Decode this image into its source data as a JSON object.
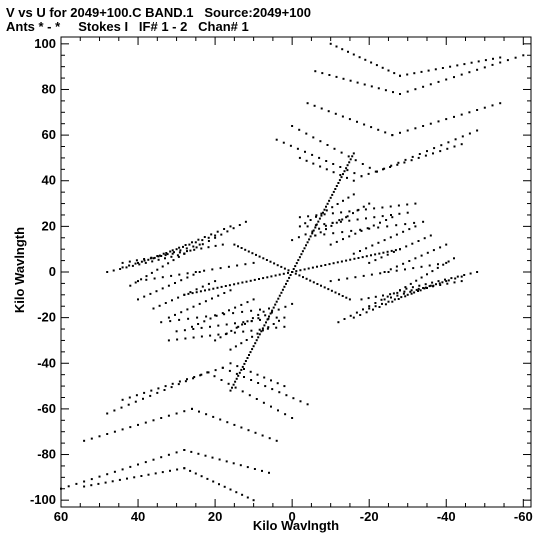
{
  "header": {
    "title": "V vs U for 2049+100.C BAND.1   Source:2049+100",
    "subtitle": "Ants * - *     Stokes I   IF# 1 - 2   Chan# 1"
  },
  "chart_data": {
    "type": "scatter",
    "title": "V vs U for 2049+100.C BAND.1   Source:2049+100",
    "subtitle": "Ants * - *     Stokes I   IF# 1 - 2   Chan# 1",
    "xlabel": "Kilo Wavlngth",
    "ylabel": "Kilo Wavlngth",
    "xlim": [
      60,
      -62
    ],
    "ylim": [
      -103,
      103
    ],
    "x_ticks": [
      60,
      40,
      20,
      0,
      -20,
      -40,
      -60
    ],
    "y_ticks": [
      100,
      80,
      60,
      40,
      20,
      0,
      -20,
      -40,
      -60,
      -80,
      -100
    ],
    "x_tick_labels": [
      "60",
      "40",
      "20",
      "0",
      "-20",
      "-40",
      "-60"
    ],
    "y_tick_labels": [
      "100",
      "80",
      "60",
      "40",
      "20",
      "0",
      "-20",
      "-40",
      "-60",
      "-80",
      "-100"
    ],
    "grid": false,
    "marker_color": "#000000",
    "description_of_data": "uv-coverage tracks, symmetric about origin (u,v) <-> (-u,-v)",
    "tracks": [
      {
        "from": [
          0,
          0
        ],
        "to": [
          -16,
          52
        ],
        "n": 40
      },
      {
        "from": [
          0,
          0
        ],
        "to": [
          16,
          -52
        ],
        "n": 40
      },
      {
        "from": [
          0,
          0
        ],
        "to": [
          28,
          -10
        ],
        "n": 26
      },
      {
        "from": [
          0,
          0
        ],
        "to": [
          -28,
          10
        ],
        "n": 26
      },
      {
        "from": [
          0,
          0
        ],
        "to": [
          -15,
          -12
        ],
        "n": 16
      },
      {
        "from": [
          0,
          0
        ],
        "to": [
          15,
          12
        ],
        "n": 16
      },
      {
        "from": [
          -10,
          100
        ],
        "to": [
          -28,
          86
        ],
        "n": 12
      },
      {
        "from": [
          -28,
          86
        ],
        "to": [
          -54,
          94
        ],
        "n": 14
      },
      {
        "from": [
          -6,
          88
        ],
        "to": [
          -28,
          78
        ],
        "n": 12
      },
      {
        "from": [
          -28,
          78
        ],
        "to": [
          -60,
          95
        ],
        "n": 16
      },
      {
        "from": [
          -4,
          74
        ],
        "to": [
          -26,
          60
        ],
        "n": 12
      },
      {
        "from": [
          -26,
          60
        ],
        "to": [
          -54,
          74
        ],
        "n": 14
      },
      {
        "from": [
          0,
          64
        ],
        "to": [
          -22,
          44
        ],
        "n": 12
      },
      {
        "from": [
          -22,
          44
        ],
        "to": [
          -48,
          62
        ],
        "n": 14
      },
      {
        "from": [
          4,
          58
        ],
        "to": [
          -18,
          42
        ],
        "n": 12
      },
      {
        "from": [
          -18,
          42
        ],
        "to": [
          -44,
          56
        ],
        "n": 14
      },
      {
        "from": [
          -2,
          50
        ],
        "to": [
          -16,
          40
        ],
        "n": 8
      },
      {
        "from": [
          10,
          -100
        ],
        "to": [
          28,
          -86
        ],
        "n": 12
      },
      {
        "from": [
          28,
          -86
        ],
        "to": [
          54,
          -94
        ],
        "n": 14
      },
      {
        "from": [
          6,
          -88
        ],
        "to": [
          28,
          -78
        ],
        "n": 12
      },
      {
        "from": [
          28,
          -78
        ],
        "to": [
          60,
          -95
        ],
        "n": 16
      },
      {
        "from": [
          4,
          -74
        ],
        "to": [
          26,
          -60
        ],
        "n": 12
      },
      {
        "from": [
          26,
          -60
        ],
        "to": [
          54,
          -74
        ],
        "n": 14
      },
      {
        "from": [
          0,
          -64
        ],
        "to": [
          22,
          -44
        ],
        "n": 12
      },
      {
        "from": [
          22,
          -44
        ],
        "to": [
          48,
          -62
        ],
        "n": 14
      },
      {
        "from": [
          -4,
          -58
        ],
        "to": [
          18,
          -42
        ],
        "n": 12
      },
      {
        "from": [
          18,
          -42
        ],
        "to": [
          44,
          -56
        ],
        "n": 14
      },
      {
        "from": [
          2,
          -50
        ],
        "to": [
          16,
          -40
        ],
        "n": 8
      },
      {
        "from": [
          12,
          22
        ],
        "to": [
          28,
          8
        ],
        "n": 10
      },
      {
        "from": [
          16,
          20
        ],
        "to": [
          36,
          6
        ],
        "n": 12
      },
      {
        "from": [
          20,
          16
        ],
        "to": [
          40,
          4
        ],
        "n": 12
      },
      {
        "from": [
          24,
          12
        ],
        "to": [
          44,
          2
        ],
        "n": 12
      },
      {
        "from": [
          28,
          8
        ],
        "to": [
          48,
          0
        ],
        "n": 12
      },
      {
        "from": [
          28,
          8
        ],
        "to": [
          42,
          -6
        ],
        "n": 10
      },
      {
        "from": [
          24,
          0
        ],
        "to": [
          40,
          -12
        ],
        "n": 10
      },
      {
        "from": [
          20,
          -4
        ],
        "to": [
          36,
          -16
        ],
        "n": 10
      },
      {
        "from": [
          16,
          -8
        ],
        "to": [
          32,
          -20
        ],
        "n": 10
      },
      {
        "from": [
          10,
          -12
        ],
        "to": [
          26,
          -24
        ],
        "n": 10
      },
      {
        "from": [
          6,
          -16
        ],
        "to": [
          20,
          -30
        ],
        "n": 10
      },
      {
        "from": [
          2,
          -20
        ],
        "to": [
          16,
          -34
        ],
        "n": 10
      },
      {
        "from": [
          18,
          12
        ],
        "to": [
          44,
          4
        ],
        "n": 14
      },
      {
        "from": [
          10,
          4
        ],
        "to": [
          40,
          -4
        ],
        "n": 14
      },
      {
        "from": [
          -12,
          -22
        ],
        "to": [
          -28,
          -8
        ],
        "n": 10
      },
      {
        "from": [
          -16,
          -20
        ],
        "to": [
          -36,
          -6
        ],
        "n": 12
      },
      {
        "from": [
          -20,
          -16
        ],
        "to": [
          -40,
          -4
        ],
        "n": 12
      },
      {
        "from": [
          -24,
          -12
        ],
        "to": [
          -44,
          -2
        ],
        "n": 12
      },
      {
        "from": [
          -28,
          -8
        ],
        "to": [
          -48,
          0
        ],
        "n": 12
      },
      {
        "from": [
          -28,
          -8
        ],
        "to": [
          -42,
          6
        ],
        "n": 10
      },
      {
        "from": [
          -24,
          0
        ],
        "to": [
          -40,
          12
        ],
        "n": 10
      },
      {
        "from": [
          -20,
          4
        ],
        "to": [
          -36,
          16
        ],
        "n": 10
      },
      {
        "from": [
          -16,
          8
        ],
        "to": [
          -32,
          20
        ],
        "n": 10
      },
      {
        "from": [
          -10,
          12
        ],
        "to": [
          -26,
          24
        ],
        "n": 10
      },
      {
        "from": [
          -6,
          16
        ],
        "to": [
          -20,
          30
        ],
        "n": 10
      },
      {
        "from": [
          -2,
          20
        ],
        "to": [
          -16,
          34
        ],
        "n": 10
      },
      {
        "from": [
          -18,
          -12
        ],
        "to": [
          -44,
          -4
        ],
        "n": 14
      },
      {
        "from": [
          -10,
          -4
        ],
        "to": [
          -40,
          4
        ],
        "n": 14
      },
      {
        "from": [
          -2,
          24
        ],
        "to": [
          -32,
          30
        ],
        "n": 14
      },
      {
        "from": [
          -4,
          20
        ],
        "to": [
          -30,
          26
        ],
        "n": 12
      },
      {
        "from": [
          -6,
          16
        ],
        "to": [
          -34,
          22
        ],
        "n": 12
      },
      {
        "from": [
          0,
          14
        ],
        "to": [
          -14,
          24
        ],
        "n": 8
      },
      {
        "from": [
          2,
          -24
        ],
        "to": [
          32,
          -30
        ],
        "n": 14
      },
      {
        "from": [
          4,
          -20
        ],
        "to": [
          30,
          -26
        ],
        "n": 12
      },
      {
        "from": [
          6,
          -16
        ],
        "to": [
          34,
          -22
        ],
        "n": 12
      },
      {
        "from": [
          0,
          -14
        ],
        "to": [
          14,
          -24
        ],
        "n": 8
      }
    ]
  }
}
